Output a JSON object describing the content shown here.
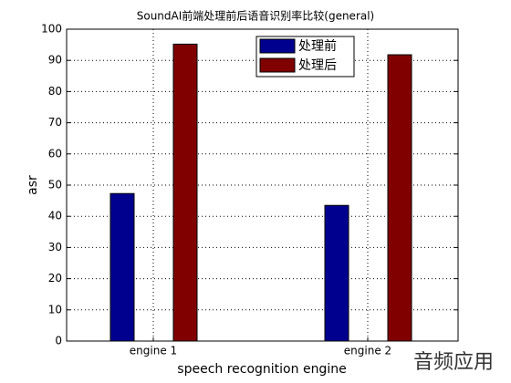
{
  "chart_data": {
    "type": "bar",
    "title": "SoundAI前端处理前后语音识别率比较(general)",
    "x_label": "speech recognition engine",
    "y_label": "asr",
    "categories": [
      "engine 1",
      "engine 2"
    ],
    "series": [
      {
        "name": "处理前",
        "color": "#00008f",
        "values": [
          47.3,
          43.5
        ]
      },
      {
        "name": "处理后",
        "color": "#800000",
        "values": [
          95.2,
          91.8
        ]
      }
    ],
    "ylim": [
      0,
      100
    ],
    "yticks": [
      0,
      10,
      20,
      30,
      40,
      50,
      60,
      70,
      80,
      90,
      100
    ],
    "grid": true,
    "legend": "top",
    "watermark": "音频应用"
  }
}
